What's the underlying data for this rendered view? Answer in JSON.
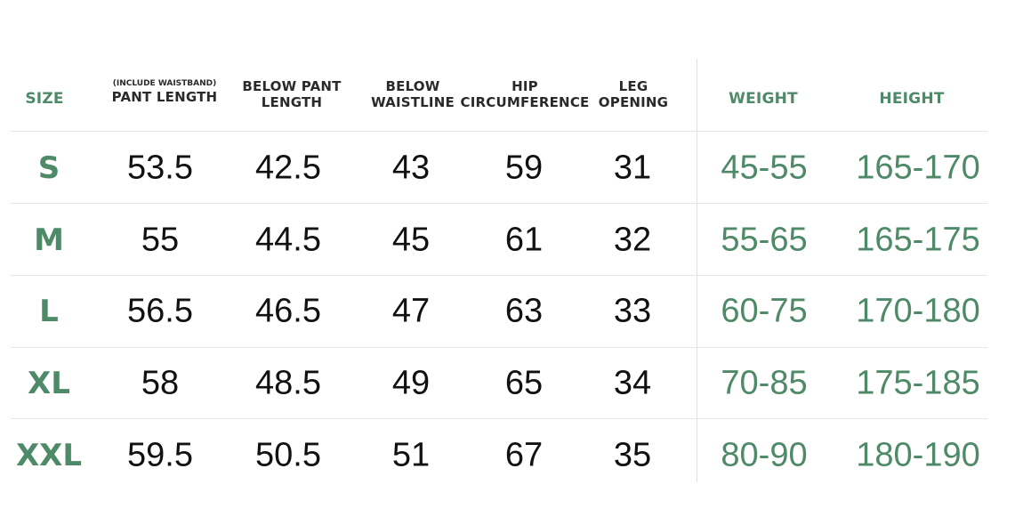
{
  "size_chart": {
    "headers": {
      "size": "SIZE",
      "pant_length_note": "(INCLUDE WAISTBAND)",
      "pant_length": "PANT LENGTH",
      "below_pant_length": [
        "BELOW PANT",
        "LENGTH"
      ],
      "below_waistline": [
        "BELOW",
        "WAISTLINE"
      ],
      "hip_circumference": [
        "HIP",
        "CIRCUMFERENCE"
      ],
      "leg_opening": [
        "LEG",
        "OPENING"
      ],
      "weight": "WEIGHT",
      "height": "HEIGHT"
    },
    "colors": {
      "accent": "#4f8a68",
      "text": "#111111",
      "rule": "#e6e6e6"
    }
  },
  "chart_data": {
    "type": "table",
    "columns": [
      "SIZE",
      "PANT LENGTH",
      "BELOW PANT LENGTH",
      "BELOW WAISTLINE",
      "HIP CIRCUMFERENCE",
      "LEG OPENING",
      "WEIGHT",
      "HEIGHT"
    ],
    "rows": [
      {
        "size": "S",
        "pant_length": "53.5",
        "below_pant_length": "42.5",
        "below_waistline": "43",
        "hip": "59",
        "leg_opening": "31",
        "weight": "45-55",
        "height": "165-170"
      },
      {
        "size": "M",
        "pant_length": "55",
        "below_pant_length": "44.5",
        "below_waistline": "45",
        "hip": "61",
        "leg_opening": "32",
        "weight": "55-65",
        "height": "165-175"
      },
      {
        "size": "L",
        "pant_length": "56.5",
        "below_pant_length": "46.5",
        "below_waistline": "47",
        "hip": "63",
        "leg_opening": "33",
        "weight": "60-75",
        "height": "170-180"
      },
      {
        "size": "XL",
        "pant_length": "58",
        "below_pant_length": "48.5",
        "below_waistline": "49",
        "hip": "65",
        "leg_opening": "34",
        "weight": "70-85",
        "height": "175-185"
      },
      {
        "size": "XXL",
        "pant_length": "59.5",
        "below_pant_length": "50.5",
        "below_waistline": "51",
        "hip": "67",
        "leg_opening": "35",
        "weight": "80-90",
        "height": "180-190"
      }
    ]
  }
}
